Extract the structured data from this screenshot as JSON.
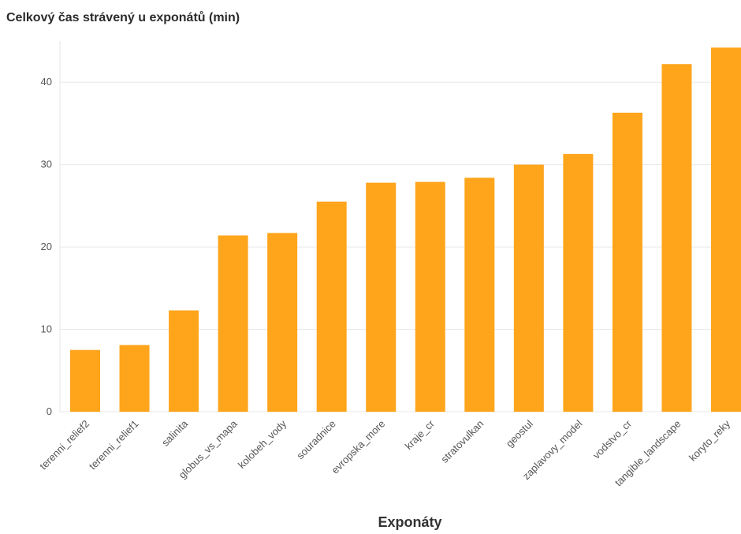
{
  "chart_data": {
    "type": "bar",
    "title": "Celkový čas strávený u exponátů (min)",
    "xlabel": "Exponáty",
    "ylabel": "",
    "categories": [
      "terenni_relief2",
      "terenni_relief1",
      "salinita",
      "globus_vs_mapa",
      "kolobeh_vody",
      "souradnice",
      "evropska_more",
      "kraje_cr",
      "stratovulkan",
      "geostul",
      "zaplavovy_model",
      "vodstvo_cr",
      "tangible_landscape",
      "koryto_reky"
    ],
    "values": [
      7.5,
      8.1,
      12.3,
      21.4,
      21.7,
      25.5,
      27.8,
      27.9,
      28.4,
      30.0,
      31.3,
      36.3,
      42.2,
      44.2
    ],
    "ylim": [
      0,
      45
    ],
    "yticks": [
      0,
      10,
      20,
      30,
      40
    ],
    "grid": true,
    "bar_color": "#ffa51c",
    "legend": "none"
  }
}
